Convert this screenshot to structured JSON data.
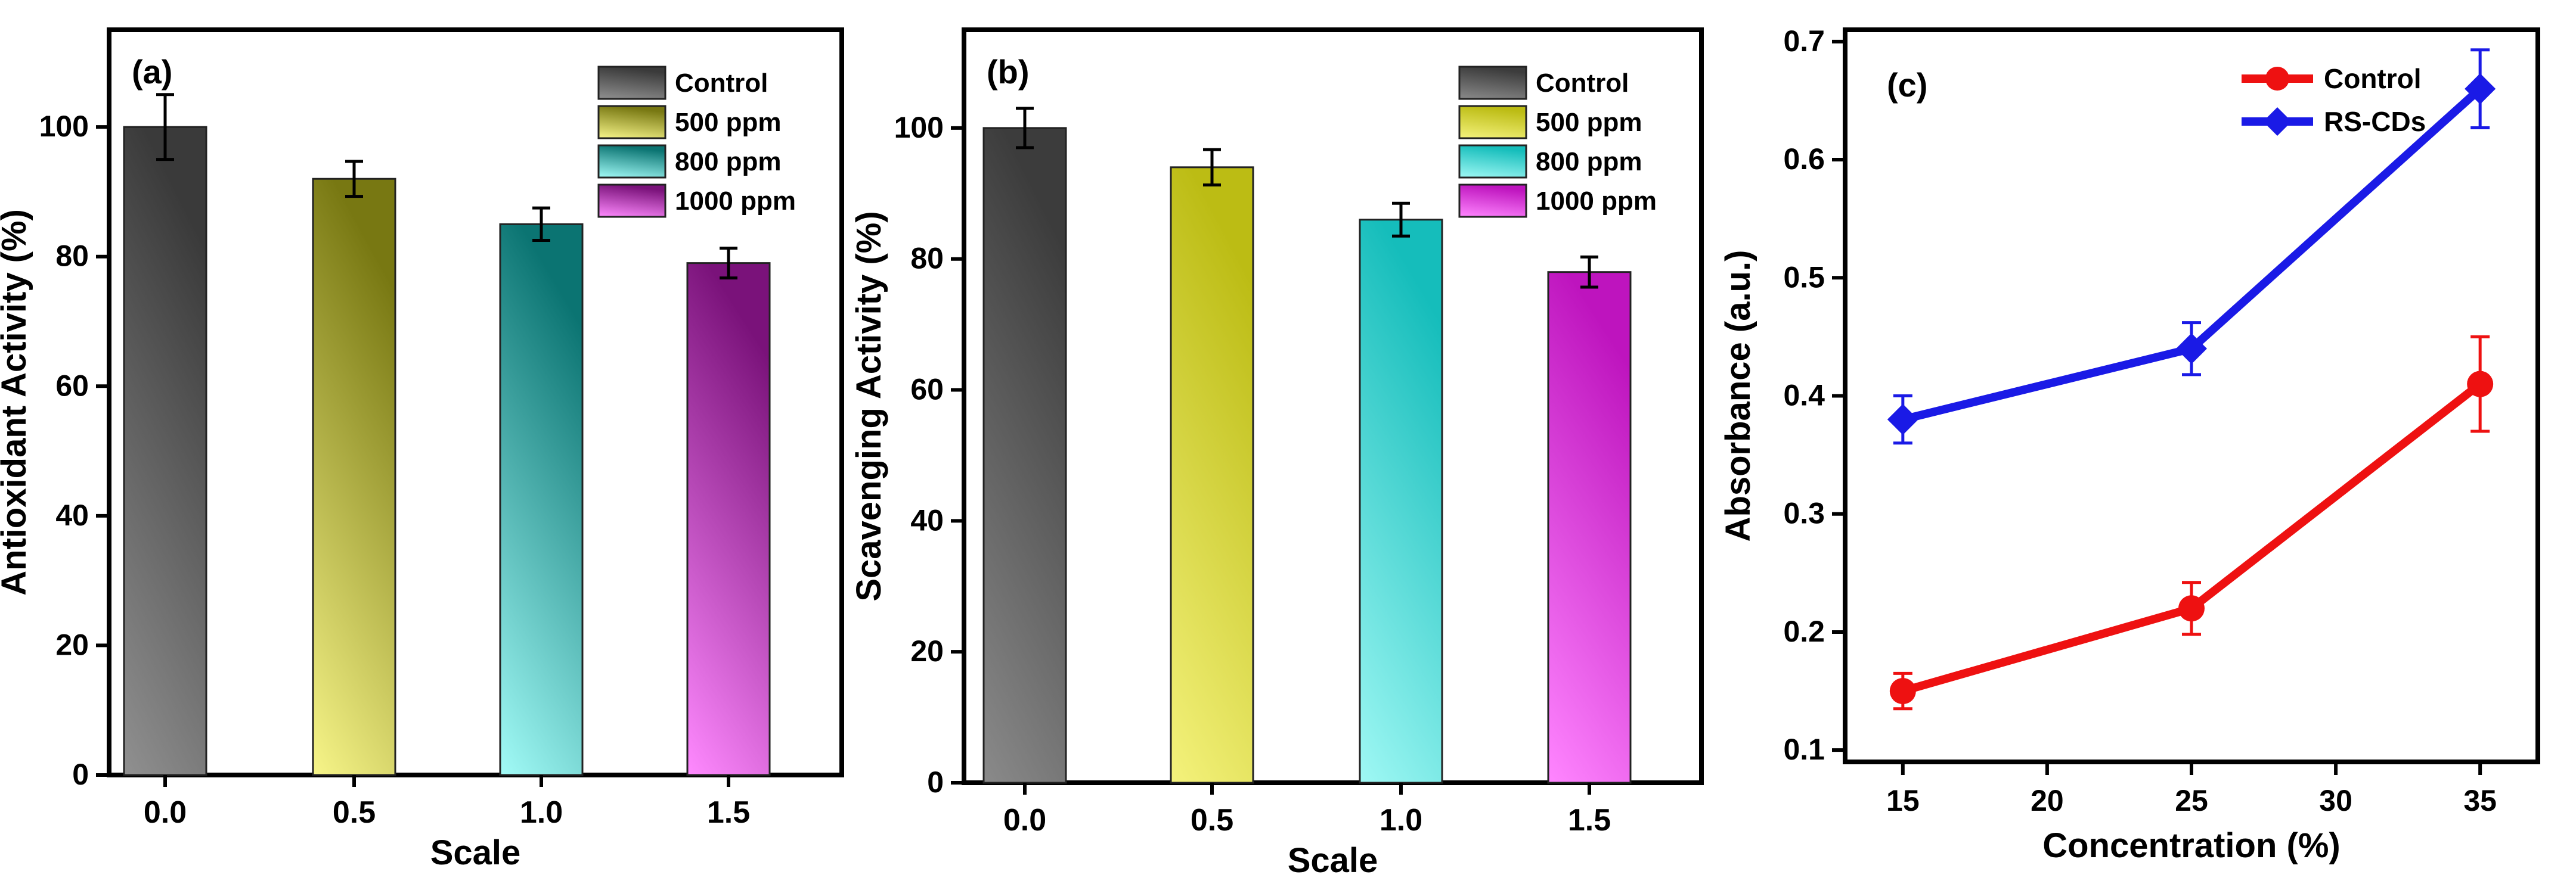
{
  "chart_data": [
    {
      "type": "bar",
      "panel_label": "(a)",
      "title": "",
      "xlabel": "Scale",
      "ylabel": "Antioxidant Activity (%)",
      "categories": [
        "0.0",
        "0.5",
        "1.0",
        "1.5"
      ],
      "values": [
        100,
        92,
        85,
        79
      ],
      "errors": [
        5,
        2.7,
        2.5,
        2.3
      ],
      "ylim": [
        0,
        115
      ],
      "yticks": [
        0,
        20,
        40,
        60,
        80,
        100
      ],
      "legend": [
        "Control",
        "500 ppm",
        "800 ppm",
        "1000 ppm"
      ],
      "legend_position": "top-right",
      "colors": [
        [
          "#909090",
          "#3a3a3a"
        ],
        [
          "#f7f589",
          "#787812"
        ],
        [
          "#a2fbf7",
          "#0b7472"
        ],
        [
          "#ff8aff",
          "#7a127a"
        ]
      ]
    },
    {
      "type": "bar",
      "panel_label": "(b)",
      "title": "",
      "xlabel": "Scale",
      "ylabel": "Scavenging Activity (%)",
      "categories": [
        "0.0",
        "0.5",
        "1.0",
        "1.5"
      ],
      "values": [
        100,
        94,
        86,
        78
      ],
      "errors": [
        3,
        2.7,
        2.5,
        2.3
      ],
      "ylim": [
        0,
        115
      ],
      "yticks": [
        0,
        20,
        40,
        60,
        80,
        100
      ],
      "legend": [
        "Control",
        "500 ppm",
        "800 ppm",
        "1000 ppm"
      ],
      "legend_position": "top-right",
      "colors": [
        [
          "#8a8a8a",
          "#3c3c3c"
        ],
        [
          "#f4f27c",
          "#bcbc14"
        ],
        [
          "#9ff8f4",
          "#15bdbb"
        ],
        [
          "#ff86ff",
          "#be14be"
        ]
      ]
    },
    {
      "type": "line",
      "panel_label": "(c)",
      "title": "",
      "xlabel": "Concentration (%)",
      "ylabel": "Absorbance (a.u.)",
      "x": [
        15,
        25,
        35
      ],
      "xlim": [
        13,
        37
      ],
      "xticks": [
        15,
        20,
        25,
        30,
        35
      ],
      "ylim": [
        0.09,
        0.71
      ],
      "yticks": [
        0.1,
        0.2,
        0.3,
        0.4,
        0.5,
        0.6,
        0.7
      ],
      "legend_position": "top-right",
      "series": [
        {
          "name": "Control",
          "values": [
            0.15,
            0.22,
            0.41
          ],
          "errors": [
            0.015,
            0.022,
            0.04
          ],
          "color": "#ee1111",
          "marker": "circle"
        },
        {
          "name": "RS-CDs",
          "values": [
            0.38,
            0.44,
            0.66
          ],
          "errors": [
            0.02,
            0.022,
            0.033
          ],
          "color": "#1a1ae6",
          "marker": "diamond"
        }
      ]
    }
  ]
}
